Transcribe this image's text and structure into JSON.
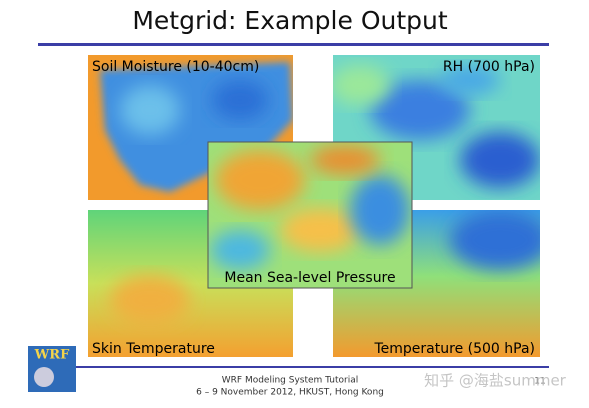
{
  "header": {
    "title": "Metgrid: Example Output"
  },
  "panels": [
    {
      "label": "Soil Moisture (10-40cm)"
    },
    {
      "label": "RH (700 hPa)"
    },
    {
      "label": "Skin Temperature"
    },
    {
      "label": "Temperature (500 hPa)"
    },
    {
      "label": "Mean Sea-level Pressure"
    }
  ],
  "footer": {
    "logo": "WRF",
    "lines": [
      "WRF Modeling System Tutorial",
      "6 – 9 November 2012, HKUST, Hong Kong"
    ],
    "page_number": "11"
  },
  "watermark": "知乎 @海盐summer"
}
